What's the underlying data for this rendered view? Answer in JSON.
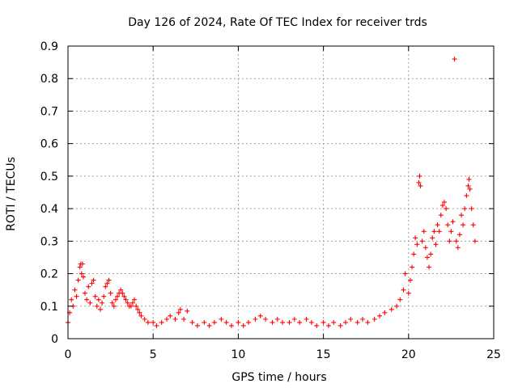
{
  "chart_data": {
    "type": "scatter",
    "title": "Day 126 of 2024, Rate Of TEC Index for receiver trds",
    "xlabel": "GPS time / hours",
    "ylabel": "ROTI / TECUs",
    "xlim": [
      0,
      25
    ],
    "ylim": [
      0,
      0.9
    ],
    "xticks": [
      0,
      5,
      10,
      15,
      20,
      25
    ],
    "yticks": [
      0,
      0.1,
      0.2,
      0.3,
      0.4,
      0.5,
      0.6,
      0.7,
      0.8,
      0.9
    ],
    "xtick_labels": [
      "0",
      "5",
      "10",
      "15",
      "20",
      "25"
    ],
    "ytick_labels": [
      "0",
      "0.1",
      "0.2",
      "0.3",
      "0.4",
      "0.5",
      "0.6",
      "0.7",
      "0.8",
      "0.9"
    ],
    "grid": true,
    "marker": "+",
    "color": "#ff0000",
    "series": [
      {
        "name": "ROTI",
        "points": [
          [
            0.0,
            0.05
          ],
          [
            0.1,
            0.08
          ],
          [
            0.2,
            0.12
          ],
          [
            0.3,
            0.1
          ],
          [
            0.4,
            0.15
          ],
          [
            0.5,
            0.13
          ],
          [
            0.6,
            0.18
          ],
          [
            0.7,
            0.22
          ],
          [
            0.75,
            0.23
          ],
          [
            0.8,
            0.2
          ],
          [
            0.85,
            0.23
          ],
          [
            0.9,
            0.19
          ],
          [
            1.0,
            0.14
          ],
          [
            1.1,
            0.12
          ],
          [
            1.2,
            0.16
          ],
          [
            1.3,
            0.11
          ],
          [
            1.4,
            0.17
          ],
          [
            1.5,
            0.18
          ],
          [
            1.6,
            0.13
          ],
          [
            1.7,
            0.1
          ],
          [
            1.8,
            0.12
          ],
          [
            1.9,
            0.09
          ],
          [
            2.0,
            0.11
          ],
          [
            2.1,
            0.13
          ],
          [
            2.2,
            0.16
          ],
          [
            2.3,
            0.17
          ],
          [
            2.4,
            0.18
          ],
          [
            2.5,
            0.14
          ],
          [
            2.6,
            0.11
          ],
          [
            2.7,
            0.1
          ],
          [
            2.8,
            0.12
          ],
          [
            2.9,
            0.13
          ],
          [
            3.0,
            0.14
          ],
          [
            3.1,
            0.15
          ],
          [
            3.2,
            0.14
          ],
          [
            3.3,
            0.13
          ],
          [
            3.4,
            0.12
          ],
          [
            3.5,
            0.11
          ],
          [
            3.6,
            0.1
          ],
          [
            3.7,
            0.1
          ],
          [
            3.8,
            0.11
          ],
          [
            3.9,
            0.12
          ],
          [
            4.0,
            0.1
          ],
          [
            4.1,
            0.09
          ],
          [
            4.2,
            0.08
          ],
          [
            4.3,
            0.07
          ],
          [
            4.5,
            0.06
          ],
          [
            4.7,
            0.05
          ],
          [
            5.0,
            0.05
          ],
          [
            5.2,
            0.04
          ],
          [
            5.5,
            0.05
          ],
          [
            5.8,
            0.06
          ],
          [
            6.0,
            0.07
          ],
          [
            6.3,
            0.06
          ],
          [
            6.5,
            0.08
          ],
          [
            6.6,
            0.09
          ],
          [
            6.8,
            0.06
          ],
          [
            7.0,
            0.085
          ],
          [
            7.3,
            0.05
          ],
          [
            7.6,
            0.04
          ],
          [
            8.0,
            0.05
          ],
          [
            8.3,
            0.04
          ],
          [
            8.6,
            0.05
          ],
          [
            9.0,
            0.06
          ],
          [
            9.3,
            0.05
          ],
          [
            9.6,
            0.04
          ],
          [
            10.0,
            0.05
          ],
          [
            10.3,
            0.04
          ],
          [
            10.6,
            0.05
          ],
          [
            11.0,
            0.06
          ],
          [
            11.3,
            0.07
          ],
          [
            11.6,
            0.06
          ],
          [
            12.0,
            0.05
          ],
          [
            12.3,
            0.06
          ],
          [
            12.6,
            0.05
          ],
          [
            13.0,
            0.05
          ],
          [
            13.3,
            0.06
          ],
          [
            13.6,
            0.05
          ],
          [
            14.0,
            0.06
          ],
          [
            14.3,
            0.05
          ],
          [
            14.6,
            0.04
          ],
          [
            15.0,
            0.05
          ],
          [
            15.3,
            0.04
          ],
          [
            15.6,
            0.05
          ],
          [
            16.0,
            0.04
          ],
          [
            16.3,
            0.05
          ],
          [
            16.6,
            0.06
          ],
          [
            17.0,
            0.05
          ],
          [
            17.3,
            0.06
          ],
          [
            17.6,
            0.05
          ],
          [
            18.0,
            0.06
          ],
          [
            18.3,
            0.07
          ],
          [
            18.6,
            0.08
          ],
          [
            19.0,
            0.09
          ],
          [
            19.3,
            0.1
          ],
          [
            19.5,
            0.12
          ],
          [
            19.7,
            0.15
          ],
          [
            19.8,
            0.2
          ],
          [
            20.0,
            0.14
          ],
          [
            20.1,
            0.18
          ],
          [
            20.2,
            0.22
          ],
          [
            20.3,
            0.26
          ],
          [
            20.4,
            0.31
          ],
          [
            20.5,
            0.29
          ],
          [
            20.6,
            0.48
          ],
          [
            20.65,
            0.5
          ],
          [
            20.7,
            0.47
          ],
          [
            20.8,
            0.3
          ],
          [
            20.9,
            0.33
          ],
          [
            21.0,
            0.28
          ],
          [
            21.1,
            0.25
          ],
          [
            21.2,
            0.22
          ],
          [
            21.3,
            0.26
          ],
          [
            21.4,
            0.31
          ],
          [
            21.5,
            0.33
          ],
          [
            21.6,
            0.29
          ],
          [
            21.7,
            0.35
          ],
          [
            21.8,
            0.33
          ],
          [
            21.9,
            0.38
          ],
          [
            22.0,
            0.41
          ],
          [
            22.1,
            0.42
          ],
          [
            22.2,
            0.4
          ],
          [
            22.3,
            0.35
          ],
          [
            22.4,
            0.3
          ],
          [
            22.5,
            0.33
          ],
          [
            22.6,
            0.36
          ],
          [
            22.7,
            0.86
          ],
          [
            22.8,
            0.3
          ],
          [
            22.9,
            0.28
          ],
          [
            23.0,
            0.32
          ],
          [
            23.1,
            0.38
          ],
          [
            23.2,
            0.35
          ],
          [
            23.3,
            0.4
          ],
          [
            23.4,
            0.44
          ],
          [
            23.5,
            0.47
          ],
          [
            23.55,
            0.49
          ],
          [
            23.6,
            0.46
          ],
          [
            23.7,
            0.4
          ],
          [
            23.8,
            0.35
          ],
          [
            23.9,
            0.3
          ]
        ]
      }
    ]
  }
}
